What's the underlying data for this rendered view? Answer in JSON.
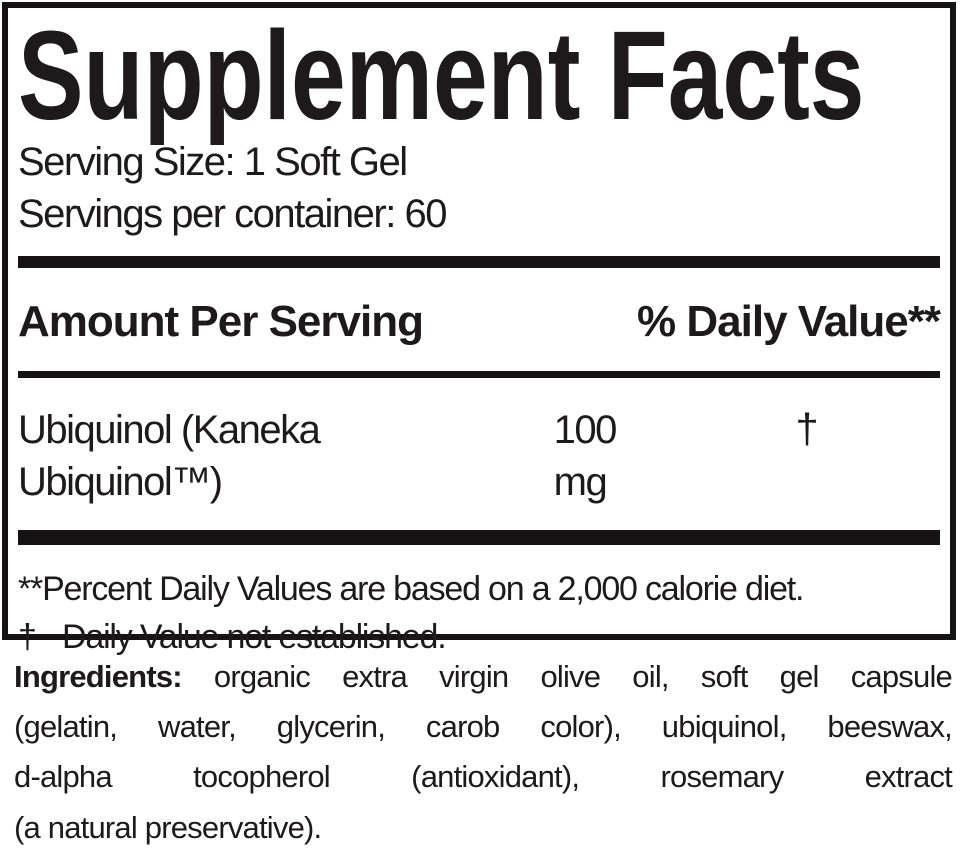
{
  "colors": {
    "text": "#1e1a1b",
    "rule": "#161314",
    "background": "#ffffff"
  },
  "panel": {
    "title": "Supplement Facts",
    "serving_size": "Serving Size: 1 Soft Gel",
    "servings_per_container": "Servings per container: 60",
    "columns": {
      "amount_header": "Amount Per Serving",
      "daily_value_header": "% Daily Value**"
    },
    "rows": [
      {
        "name": "Ubiquinol (Kaneka Ubiquinol™)",
        "amount": "100 mg",
        "daily_value": "†"
      }
    ],
    "footnotes": {
      "percent": "**Percent Daily Values are based on a 2,000 calorie diet.",
      "dagger_marker": "†",
      "dagger_text": "Daily Value not established."
    }
  },
  "ingredients": {
    "label": "Ingredients:",
    "lines": [
      "organic extra virgin olive oil, soft gel capsule",
      "(gelatin, water, glycerin, carob color), ubiquinol, beeswax,",
      "d-alpha tocopherol (antioxidant), rosemary extract",
      "(a natural preservative)."
    ]
  }
}
